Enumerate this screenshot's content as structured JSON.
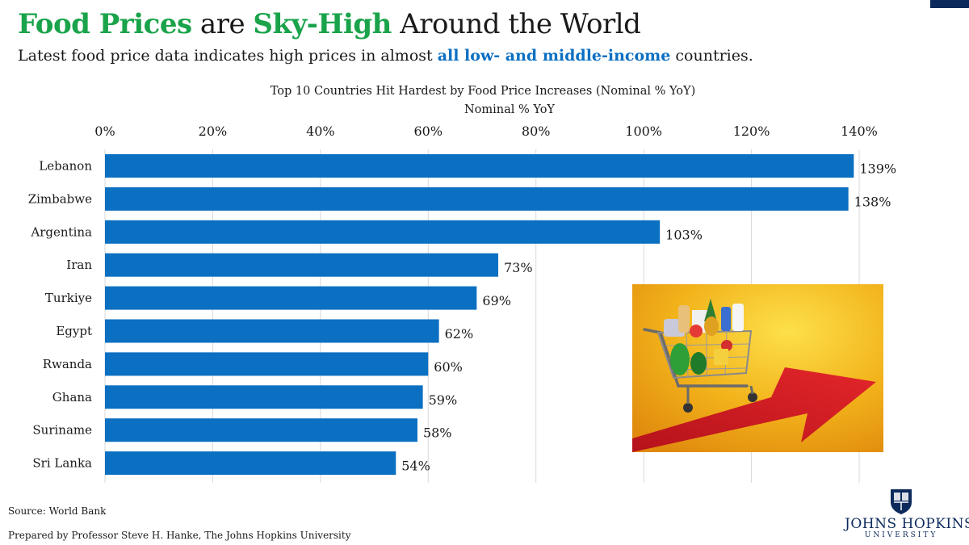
{
  "header": {
    "title_part1": "Food Prices",
    "title_part2": " are ",
    "title_part3": "Sky-High",
    "title_part4": " Around the World",
    "subtitle_part1": "Latest food price data indicates high prices in almost ",
    "subtitle_part2": "all low- and middle-income",
    "subtitle_part3": " countries."
  },
  "chart_data": {
    "type": "bar",
    "orientation": "horizontal",
    "title": "Top 10 Countries Hit Hardest by Food Price Increases (Nominal % YoY)",
    "xlabel": "Nominal % YoY",
    "ylabel": "",
    "categories": [
      "Lebanon",
      "Zimbabwe",
      "Argentina",
      "Iran",
      "Turkiye",
      "Egypt",
      "Rwanda",
      "Ghana",
      "Suriname",
      "Sri Lanka"
    ],
    "values": [
      139,
      138,
      103,
      73,
      69,
      62,
      60,
      59,
      58,
      54
    ],
    "data_labels": [
      "139%",
      "138%",
      "103%",
      "73%",
      "69%",
      "62%",
      "60%",
      "59%",
      "58%",
      "54%"
    ],
    "xlim": [
      0,
      140
    ],
    "x_ticks": [
      0,
      20,
      40,
      60,
      80,
      100,
      120,
      140
    ],
    "x_tick_labels": [
      "0%",
      "20%",
      "40%",
      "60%",
      "80%",
      "100%",
      "120%",
      "140%"
    ],
    "x_axis_position": "top",
    "grid": true,
    "bar_color": "#0b6fc2",
    "grid_color": "#d9d9d9"
  },
  "illustration": {
    "icon": "shopping-cart-riding-red-arrow-icon",
    "background_color": "#f2b21a",
    "arrow_color": "#d31f1f"
  },
  "footer": {
    "source": "Source:  World Bank",
    "prepared_by": "Prepared by Professor Steve H. Hanke, The Johns Hopkins University"
  },
  "logo": {
    "icon": "university-shield-icon",
    "name": "JOHNS HOPKINS",
    "sub": "UNIVERSITY",
    "color": "#0d2a5c"
  }
}
